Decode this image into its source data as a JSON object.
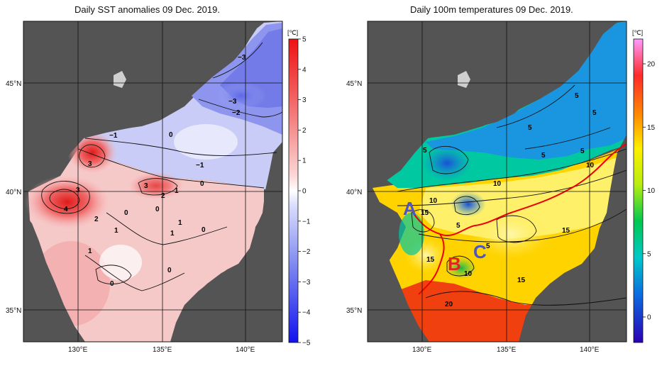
{
  "panels": {
    "left": {
      "title": "Daily SST anomalies 09 Dec. 2019.",
      "unit": "[℃]",
      "colorbar_ticks": [
        "5",
        "4",
        "3",
        "2",
        "1",
        "0",
        "−1",
        "−2",
        "−3",
        "−4",
        "−5"
      ],
      "lat_labels": [
        "45°N",
        "40°N",
        "35°N"
      ],
      "lon_labels": [
        "130°E",
        "135°E",
        "140°E"
      ],
      "contour_labels": [
        "−3",
        "−3",
        "−2",
        "−1",
        "0",
        "−1",
        "0",
        "3",
        "3",
        "4",
        "2",
        "1",
        "1",
        "0",
        "3",
        "2",
        "1",
        "0",
        "0",
        "1",
        "1",
        "0",
        "0"
      ]
    },
    "right": {
      "title": "Daily 100m temperatures 09 Dec. 2019.",
      "unit": "[℃]",
      "colorbar_ticks": [
        "20",
        "15",
        "10",
        "5",
        "0"
      ],
      "lat_labels": [
        "45°N",
        "40°N",
        "35°N"
      ],
      "lon_labels": [
        "130°E",
        "135°E",
        "140°E"
      ],
      "contour_labels": [
        "5",
        "5",
        "5",
        "5",
        "5",
        "5",
        "10",
        "10",
        "10",
        "15",
        "5",
        "15",
        "15",
        "5",
        "10",
        "15",
        "20"
      ],
      "region_labels": [
        "A",
        "B",
        "C"
      ]
    }
  },
  "colors": {
    "land": "#545454",
    "warm_max": "#ee1111",
    "cold_max": "#1111ee",
    "front_line": "#ee0000",
    "label_A": "#4b55c8",
    "label_B": "#e52222",
    "label_C": "#4b55c8"
  }
}
